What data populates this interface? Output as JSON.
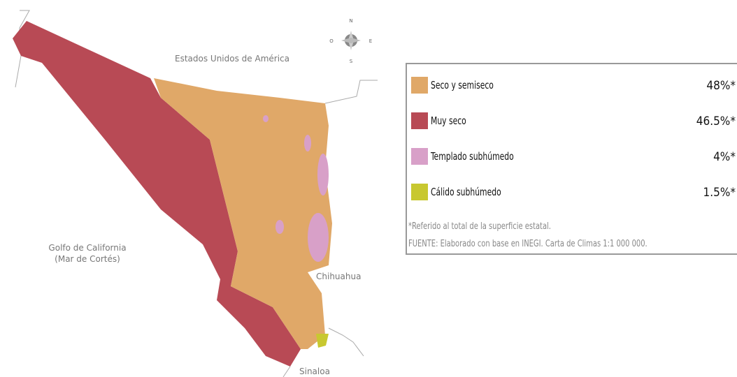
{
  "map": {
    "labels": {
      "usa": "Estados Unidos de América",
      "gulf": "Golfo de California",
      "gulf_alt": "(Mar de Cortés)",
      "chihuahua": "Chihuahua",
      "sinaloa": "Sinaloa"
    },
    "compass": {
      "n": "N",
      "s": "S",
      "e": "E",
      "w": "O"
    }
  },
  "legend": {
    "items": [
      {
        "label": "Seco y semiseco",
        "share": "48%*",
        "color": "#e0a868"
      },
      {
        "label": "Muy seco",
        "share": "46.5%*",
        "color": "#b84a55"
      },
      {
        "label": "Templado subhúmedo",
        "share": "4%*",
        "color": "#d8a0c8"
      },
      {
        "label": "Cálido subhúmedo",
        "share": "1.5%*",
        "color": "#c8c830"
      }
    ],
    "note": "*Referido al total de la superficie estatal.",
    "source": "FUENTE: Elaborado con base en INEGI. Carta de Climas 1:1 000 000."
  }
}
